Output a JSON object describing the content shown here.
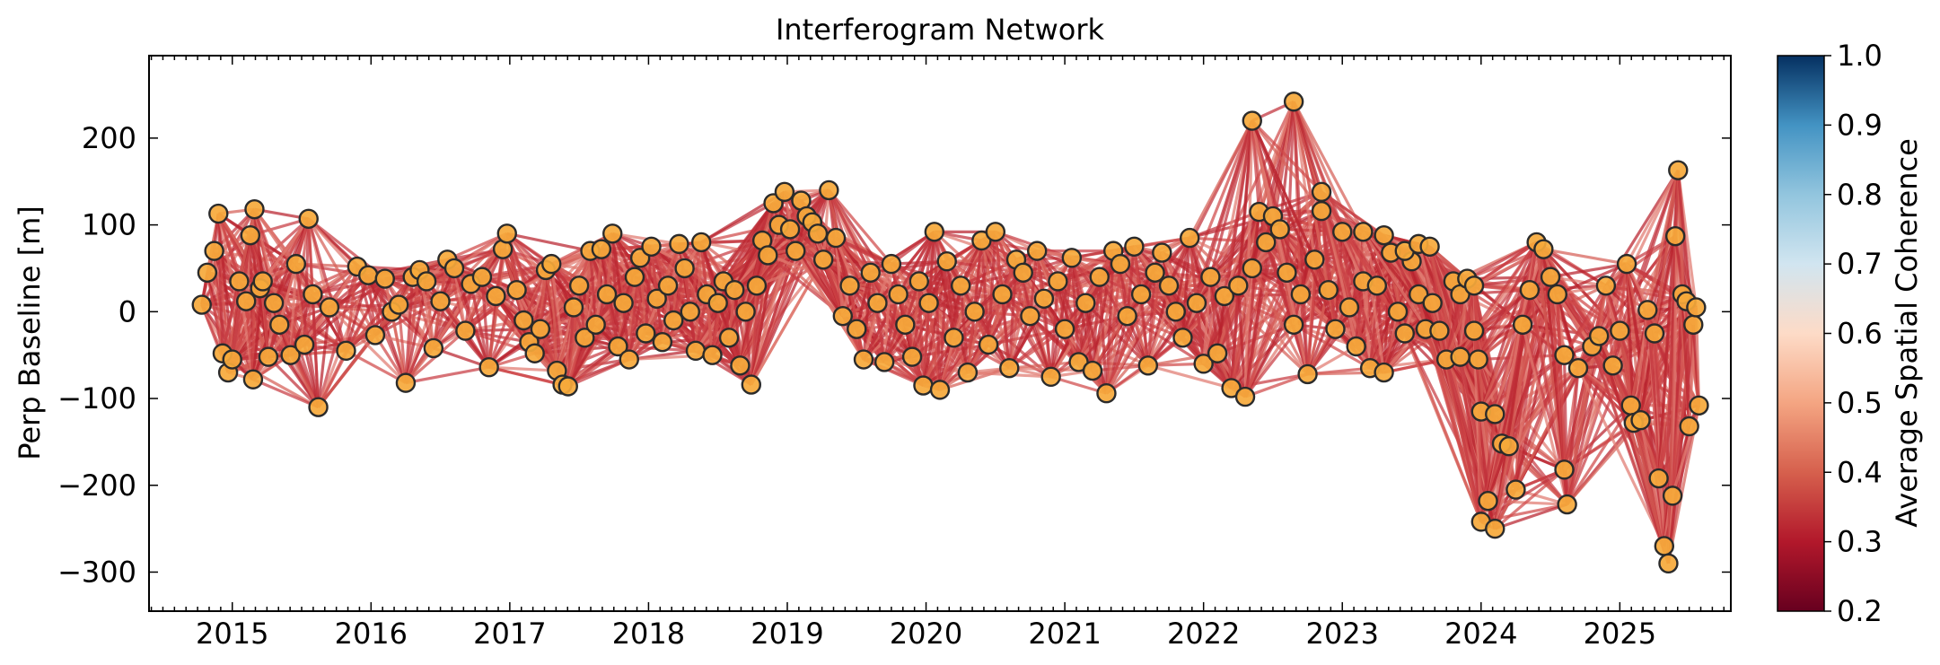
{
  "chart_data": {
    "type": "scatter",
    "title": "Interferogram Network",
    "ylabel": "Perp Baseline [m]",
    "xlim": [
      2014.4,
      2025.8
    ],
    "ylim": [
      -345,
      295
    ],
    "x_ticks": [
      2015,
      2016,
      2017,
      2018,
      2019,
      2020,
      2021,
      2022,
      2023,
      2024,
      2025
    ],
    "y_ticks": [
      -300,
      -200,
      -100,
      0,
      100,
      200
    ],
    "colorbar": {
      "label": "Average Spatial Coherence",
      "min": 0.2,
      "max": 1.0,
      "ticks": [
        0.2,
        0.3,
        0.4,
        0.5,
        0.6,
        0.7,
        0.8,
        0.9,
        1.0
      ],
      "colormap": "RdBu"
    },
    "colors": {
      "point_fill": "#f6a93b",
      "point_edge": "#2b2b2b"
    },
    "grid": false,
    "acquisitions": [
      {
        "x": 2014.78,
        "y": 8
      },
      {
        "x": 2014.82,
        "y": 45
      },
      {
        "x": 2014.87,
        "y": 70
      },
      {
        "x": 2014.9,
        "y": 113
      },
      {
        "x": 2014.93,
        "y": -48
      },
      {
        "x": 2014.97,
        "y": -70
      },
      {
        "x": 2015.0,
        "y": -55
      },
      {
        "x": 2015.05,
        "y": 35
      },
      {
        "x": 2015.1,
        "y": 12
      },
      {
        "x": 2015.15,
        "y": -78
      },
      {
        "x": 2015.2,
        "y": 27
      },
      {
        "x": 2015.26,
        "y": -52
      },
      {
        "x": 2015.13,
        "y": 88
      },
      {
        "x": 2015.16,
        "y": 118
      },
      {
        "x": 2015.22,
        "y": 35
      },
      {
        "x": 2015.3,
        "y": 10
      },
      {
        "x": 2015.34,
        "y": -15
      },
      {
        "x": 2015.42,
        "y": -50
      },
      {
        "x": 2015.46,
        "y": 55
      },
      {
        "x": 2015.52,
        "y": -38
      },
      {
        "x": 2015.55,
        "y": 107
      },
      {
        "x": 2015.58,
        "y": 20
      },
      {
        "x": 2015.62,
        "y": -110
      },
      {
        "x": 2015.7,
        "y": 5
      },
      {
        "x": 2015.82,
        "y": -45
      },
      {
        "x": 2015.9,
        "y": 52
      },
      {
        "x": 2015.98,
        "y": 42
      },
      {
        "x": 2016.03,
        "y": -27
      },
      {
        "x": 2016.1,
        "y": 38
      },
      {
        "x": 2016.15,
        "y": 0
      },
      {
        "x": 2016.2,
        "y": 8
      },
      {
        "x": 2016.25,
        "y": -82
      },
      {
        "x": 2016.3,
        "y": 40
      },
      {
        "x": 2016.35,
        "y": 48
      },
      {
        "x": 2016.4,
        "y": 35
      },
      {
        "x": 2016.45,
        "y": -42
      },
      {
        "x": 2016.5,
        "y": 12
      },
      {
        "x": 2016.55,
        "y": 60
      },
      {
        "x": 2016.6,
        "y": 50
      },
      {
        "x": 2016.68,
        "y": -22
      },
      {
        "x": 2016.72,
        "y": 32
      },
      {
        "x": 2016.8,
        "y": 40
      },
      {
        "x": 2016.85,
        "y": -64
      },
      {
        "x": 2016.9,
        "y": 18
      },
      {
        "x": 2016.95,
        "y": 72
      },
      {
        "x": 2016.98,
        "y": 90
      },
      {
        "x": 2017.05,
        "y": 25
      },
      {
        "x": 2017.1,
        "y": -10
      },
      {
        "x": 2017.14,
        "y": -35
      },
      {
        "x": 2017.18,
        "y": -48
      },
      {
        "x": 2017.22,
        "y": -20
      },
      {
        "x": 2017.26,
        "y": 48
      },
      {
        "x": 2017.3,
        "y": 55
      },
      {
        "x": 2017.34,
        "y": -68
      },
      {
        "x": 2017.38,
        "y": -84
      },
      {
        "x": 2017.42,
        "y": -86
      },
      {
        "x": 2017.46,
        "y": 5
      },
      {
        "x": 2017.5,
        "y": 30
      },
      {
        "x": 2017.54,
        "y": -30
      },
      {
        "x": 2017.58,
        "y": 70
      },
      {
        "x": 2017.62,
        "y": -15
      },
      {
        "x": 2017.66,
        "y": 72
      },
      {
        "x": 2017.7,
        "y": 20
      },
      {
        "x": 2017.74,
        "y": 90
      },
      {
        "x": 2017.78,
        "y": -40
      },
      {
        "x": 2017.82,
        "y": 10
      },
      {
        "x": 2017.86,
        "y": -55
      },
      {
        "x": 2017.9,
        "y": 40
      },
      {
        "x": 2017.94,
        "y": 62
      },
      {
        "x": 2017.98,
        "y": -25
      },
      {
        "x": 2018.02,
        "y": 75
      },
      {
        "x": 2018.06,
        "y": 15
      },
      {
        "x": 2018.1,
        "y": -35
      },
      {
        "x": 2018.14,
        "y": 30
      },
      {
        "x": 2018.18,
        "y": -10
      },
      {
        "x": 2018.22,
        "y": 78
      },
      {
        "x": 2018.26,
        "y": 50
      },
      {
        "x": 2018.3,
        "y": 0
      },
      {
        "x": 2018.34,
        "y": -45
      },
      {
        "x": 2018.38,
        "y": 80
      },
      {
        "x": 2018.42,
        "y": 20
      },
      {
        "x": 2018.46,
        "y": -50
      },
      {
        "x": 2018.5,
        "y": 10
      },
      {
        "x": 2018.54,
        "y": 35
      },
      {
        "x": 2018.58,
        "y": -30
      },
      {
        "x": 2018.62,
        "y": 25
      },
      {
        "x": 2018.66,
        "y": -62
      },
      {
        "x": 2018.7,
        "y": 0
      },
      {
        "x": 2018.74,
        "y": -84
      },
      {
        "x": 2018.78,
        "y": 30
      },
      {
        "x": 2018.82,
        "y": 82
      },
      {
        "x": 2018.86,
        "y": 65
      },
      {
        "x": 2018.9,
        "y": 125
      },
      {
        "x": 2018.94,
        "y": 100
      },
      {
        "x": 2018.98,
        "y": 138
      },
      {
        "x": 2019.02,
        "y": 95
      },
      {
        "x": 2019.06,
        "y": 70
      },
      {
        "x": 2019.1,
        "y": 128
      },
      {
        "x": 2019.14,
        "y": 110
      },
      {
        "x": 2019.18,
        "y": 103
      },
      {
        "x": 2019.22,
        "y": 90
      },
      {
        "x": 2019.26,
        "y": 60
      },
      {
        "x": 2019.3,
        "y": 140
      },
      {
        "x": 2019.35,
        "y": 85
      },
      {
        "x": 2019.4,
        "y": -5
      },
      {
        "x": 2019.45,
        "y": 30
      },
      {
        "x": 2019.5,
        "y": -20
      },
      {
        "x": 2019.55,
        "y": -55
      },
      {
        "x": 2019.6,
        "y": 45
      },
      {
        "x": 2019.65,
        "y": 10
      },
      {
        "x": 2019.7,
        "y": -58
      },
      {
        "x": 2019.75,
        "y": 55
      },
      {
        "x": 2019.8,
        "y": 20
      },
      {
        "x": 2019.85,
        "y": -15
      },
      {
        "x": 2019.9,
        "y": -52
      },
      {
        "x": 2019.95,
        "y": 35
      },
      {
        "x": 2019.98,
        "y": -85
      },
      {
        "x": 2020.02,
        "y": 10
      },
      {
        "x": 2020.06,
        "y": 92
      },
      {
        "x": 2020.1,
        "y": -90
      },
      {
        "x": 2020.15,
        "y": 58
      },
      {
        "x": 2020.2,
        "y": -30
      },
      {
        "x": 2020.25,
        "y": 30
      },
      {
        "x": 2020.3,
        "y": -70
      },
      {
        "x": 2020.35,
        "y": 0
      },
      {
        "x": 2020.4,
        "y": 82
      },
      {
        "x": 2020.45,
        "y": -38
      },
      {
        "x": 2020.5,
        "y": 92
      },
      {
        "x": 2020.55,
        "y": 20
      },
      {
        "x": 2020.6,
        "y": -65
      },
      {
        "x": 2020.65,
        "y": 60
      },
      {
        "x": 2020.7,
        "y": 45
      },
      {
        "x": 2020.75,
        "y": -5
      },
      {
        "x": 2020.8,
        "y": 70
      },
      {
        "x": 2020.85,
        "y": 15
      },
      {
        "x": 2020.9,
        "y": -75
      },
      {
        "x": 2020.95,
        "y": 35
      },
      {
        "x": 2021.0,
        "y": -20
      },
      {
        "x": 2021.05,
        "y": 62
      },
      {
        "x": 2021.1,
        "y": -58
      },
      {
        "x": 2021.15,
        "y": 10
      },
      {
        "x": 2021.2,
        "y": -68
      },
      {
        "x": 2021.25,
        "y": 40
      },
      {
        "x": 2021.3,
        "y": -94
      },
      {
        "x": 2021.35,
        "y": 70
      },
      {
        "x": 2021.4,
        "y": 55
      },
      {
        "x": 2021.45,
        "y": -5
      },
      {
        "x": 2021.5,
        "y": 75
      },
      {
        "x": 2021.55,
        "y": 20
      },
      {
        "x": 2021.6,
        "y": -62
      },
      {
        "x": 2021.65,
        "y": 45
      },
      {
        "x": 2021.7,
        "y": 68
      },
      {
        "x": 2021.75,
        "y": 30
      },
      {
        "x": 2021.8,
        "y": 0
      },
      {
        "x": 2021.85,
        "y": -30
      },
      {
        "x": 2021.9,
        "y": 85
      },
      {
        "x": 2021.95,
        "y": 10
      },
      {
        "x": 2022.0,
        "y": -60
      },
      {
        "x": 2022.05,
        "y": 40
      },
      {
        "x": 2022.1,
        "y": -48
      },
      {
        "x": 2022.15,
        "y": 18
      },
      {
        "x": 2022.2,
        "y": -88
      },
      {
        "x": 2022.25,
        "y": 30
      },
      {
        "x": 2022.3,
        "y": -98
      },
      {
        "x": 2022.35,
        "y": 50
      },
      {
        "x": 2022.4,
        "y": 115
      },
      {
        "x": 2022.45,
        "y": 80
      },
      {
        "x": 2022.5,
        "y": 110
      },
      {
        "x": 2022.55,
        "y": 95
      },
      {
        "x": 2022.6,
        "y": 45
      },
      {
        "x": 2022.65,
        "y": -15
      },
      {
        "x": 2022.7,
        "y": 20
      },
      {
        "x": 2022.75,
        "y": -72
      },
      {
        "x": 2022.8,
        "y": 60
      },
      {
        "x": 2022.85,
        "y": 116
      },
      {
        "x": 2022.9,
        "y": 25
      },
      {
        "x": 2022.95,
        "y": -20
      },
      {
        "x": 2023.0,
        "y": 92
      },
      {
        "x": 2023.05,
        "y": 5
      },
      {
        "x": 2023.1,
        "y": -40
      },
      {
        "x": 2023.15,
        "y": 35
      },
      {
        "x": 2023.2,
        "y": -65
      },
      {
        "x": 2023.25,
        "y": 30
      },
      {
        "x": 2023.3,
        "y": -70
      },
      {
        "x": 2023.35,
        "y": 68
      },
      {
        "x": 2023.4,
        "y": 0
      },
      {
        "x": 2023.45,
        "y": -25
      },
      {
        "x": 2023.5,
        "y": 58
      },
      {
        "x": 2023.55,
        "y": 20
      },
      {
        "x": 2023.6,
        "y": -20
      },
      {
        "x": 2023.65,
        "y": 10
      },
      {
        "x": 2023.7,
        "y": -22
      },
      {
        "x": 2022.35,
        "y": 220
      },
      {
        "x": 2022.65,
        "y": 242
      },
      {
        "x": 2022.85,
        "y": 138
      },
      {
        "x": 2023.15,
        "y": 92
      },
      {
        "x": 2023.3,
        "y": 88
      },
      {
        "x": 2023.45,
        "y": 70
      },
      {
        "x": 2023.55,
        "y": 78
      },
      {
        "x": 2023.63,
        "y": 75
      },
      {
        "x": 2023.8,
        "y": 35
      },
      {
        "x": 2023.85,
        "y": 20
      },
      {
        "x": 2023.9,
        "y": 38
      },
      {
        "x": 2023.95,
        "y": 30
      },
      {
        "x": 2023.75,
        "y": -55
      },
      {
        "x": 2023.85,
        "y": -52
      },
      {
        "x": 2023.95,
        "y": -22
      },
      {
        "x": 2023.98,
        "y": -55
      },
      {
        "x": 2024.0,
        "y": -115
      },
      {
        "x": 2024.1,
        "y": -118
      },
      {
        "x": 2024.15,
        "y": -152
      },
      {
        "x": 2024.2,
        "y": -155
      },
      {
        "x": 2024.25,
        "y": -205
      },
      {
        "x": 2024.0,
        "y": -242
      },
      {
        "x": 2024.05,
        "y": -218
      },
      {
        "x": 2024.1,
        "y": -250
      },
      {
        "x": 2024.3,
        "y": -15
      },
      {
        "x": 2024.35,
        "y": 25
      },
      {
        "x": 2024.4,
        "y": 80
      },
      {
        "x": 2024.45,
        "y": 72
      },
      {
        "x": 2024.5,
        "y": 40
      },
      {
        "x": 2024.55,
        "y": 20
      },
      {
        "x": 2024.6,
        "y": -50
      },
      {
        "x": 2024.6,
        "y": -182
      },
      {
        "x": 2024.62,
        "y": -222
      },
      {
        "x": 2024.7,
        "y": -65
      },
      {
        "x": 2024.8,
        "y": -40
      },
      {
        "x": 2024.85,
        "y": -28
      },
      {
        "x": 2024.9,
        "y": 30
      },
      {
        "x": 2024.95,
        "y": -62
      },
      {
        "x": 2025.0,
        "y": -22
      },
      {
        "x": 2025.05,
        "y": 55
      },
      {
        "x": 2025.08,
        "y": -108
      },
      {
        "x": 2025.1,
        "y": -128
      },
      {
        "x": 2025.15,
        "y": -125
      },
      {
        "x": 2025.2,
        "y": 2
      },
      {
        "x": 2025.25,
        "y": -25
      },
      {
        "x": 2025.28,
        "y": -192
      },
      {
        "x": 2025.32,
        "y": -270
      },
      {
        "x": 2025.35,
        "y": -290
      },
      {
        "x": 2025.38,
        "y": -212
      },
      {
        "x": 2025.4,
        "y": 87
      },
      {
        "x": 2025.42,
        "y": 163
      },
      {
        "x": 2025.45,
        "y": 20
      },
      {
        "x": 2025.48,
        "y": 12
      },
      {
        "x": 2025.5,
        "y": -132
      },
      {
        "x": 2025.53,
        "y": -15
      },
      {
        "x": 2025.55,
        "y": 5
      },
      {
        "x": 2025.57,
        "y": -108
      }
    ]
  }
}
